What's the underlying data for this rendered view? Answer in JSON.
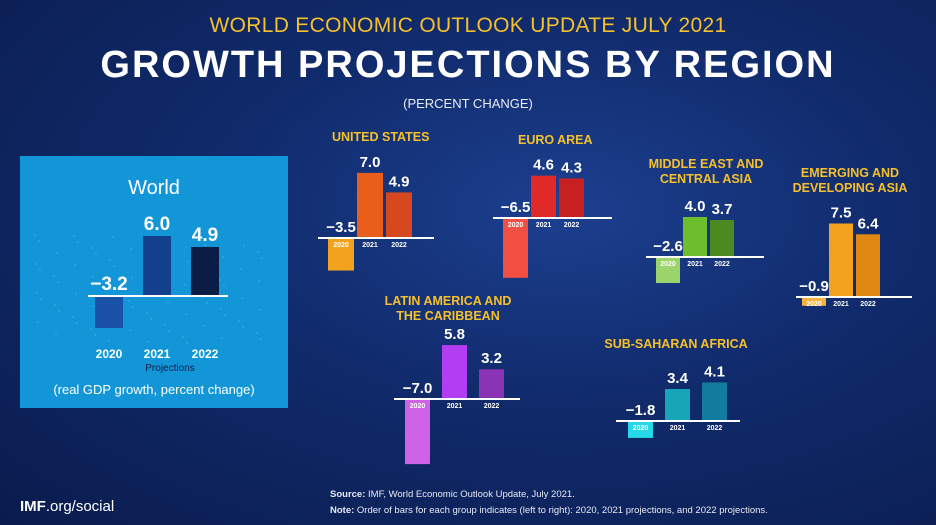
{
  "header": {
    "subtitle": "WORLD ECONOMIC OUTLOOK UPDATE JULY 2021",
    "title": "GROWTH PROJECTIONS BY REGION",
    "unit": "(PERCENT CHANGE)"
  },
  "world_panel": {
    "projections_label": "Projections",
    "caption": "(real GDP growth, percent change)"
  },
  "footer": {
    "brand_bold": "IMF",
    "brand_rest": ".org/social",
    "source_label": "Source:",
    "source_text": " IMF, World Economic Outlook Update, July 2021.",
    "note_label": "Note:",
    "note_text": " Order of bars for each group indicates (left to right): 2020, 2021 projections, and 2022 projections."
  },
  "colors": {
    "background": "#102a6a",
    "accent": "#f5c02c",
    "world_panel": "#1396d8"
  },
  "chart_data": [
    {
      "type": "bar",
      "title": "World",
      "categories": [
        "2020",
        "2021",
        "2022"
      ],
      "values": [
        -3.2,
        6.0,
        4.9
      ],
      "colors": [
        "#1a52a8",
        "#143f8c",
        "#0b1d45"
      ]
    },
    {
      "type": "bar",
      "title": "UNITED STATES",
      "categories": [
        "2020",
        "2021",
        "2022"
      ],
      "values": [
        -3.5,
        7.0,
        4.9
      ],
      "colors": [
        "#f3a21e",
        "#e85e1a",
        "#d8481e"
      ]
    },
    {
      "type": "bar",
      "title": "EURO AREA",
      "categories": [
        "2020",
        "2021",
        "2022"
      ],
      "values": [
        -6.5,
        4.6,
        4.3
      ],
      "colors": [
        "#f24f43",
        "#e02a2a",
        "#c72020"
      ]
    },
    {
      "type": "bar",
      "title": "MIDDLE EAST AND CENTRAL ASIA",
      "categories": [
        "2020",
        "2021",
        "2022"
      ],
      "values": [
        -2.6,
        4.0,
        3.7
      ],
      "colors": [
        "#9bd46b",
        "#6cbe2d",
        "#4b8a21"
      ]
    },
    {
      "type": "bar",
      "title": "EMERGING AND DEVELOPING ASIA",
      "categories": [
        "2020",
        "2021",
        "2022"
      ],
      "values": [
        -0.9,
        7.5,
        6.4
      ],
      "colors": [
        "#f6b23c",
        "#f3a21e",
        "#e08812"
      ]
    },
    {
      "type": "bar",
      "title": "LATIN AMERICA AND THE CARIBBEAN",
      "categories": [
        "2020",
        "2021",
        "2022"
      ],
      "values": [
        -7.0,
        5.8,
        3.2
      ],
      "colors": [
        "#cf63e8",
        "#b23df2",
        "#8a34b5"
      ]
    },
    {
      "type": "bar",
      "title": "SUB-SAHARAN AFRICA",
      "categories": [
        "2020",
        "2021",
        "2022"
      ],
      "values": [
        -1.8,
        3.4,
        4.1
      ],
      "colors": [
        "#27d8e8",
        "#18a5b8",
        "#117c9d"
      ]
    }
  ]
}
